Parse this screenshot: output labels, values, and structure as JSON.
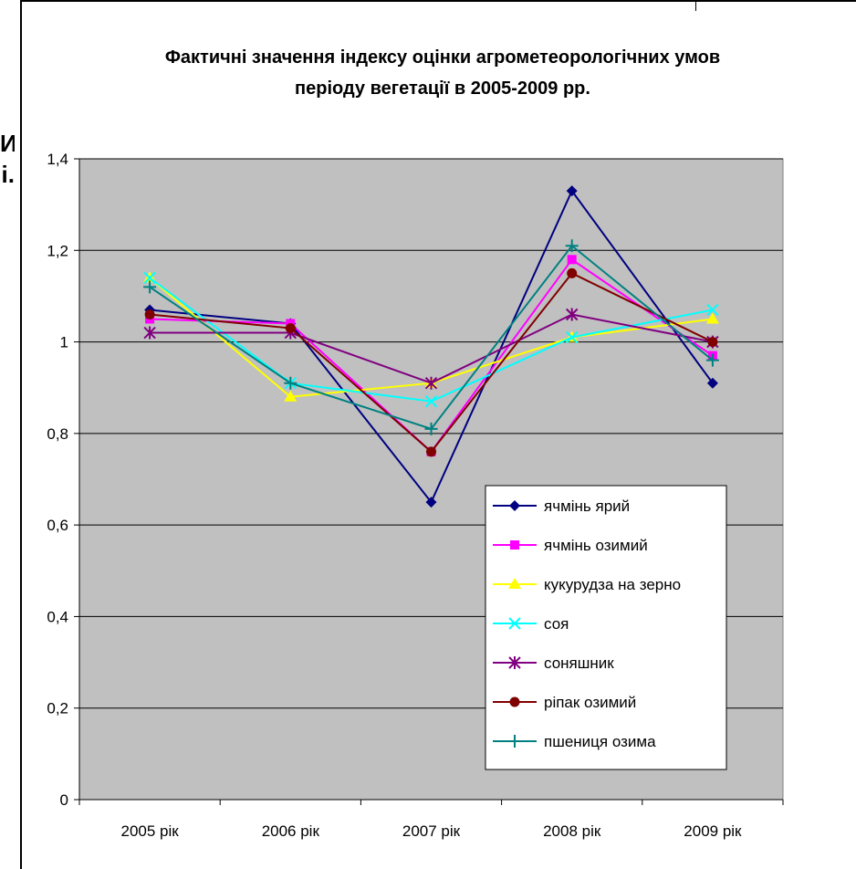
{
  "side_text": [
    "И",
    "і."
  ],
  "chart_data": {
    "type": "line",
    "title": "Фактичні значення індексу оцінки агрометеорологічних умов періоду вегетації в 2005-2009 рр.",
    "title_lines": [
      "Фактичні значення індексу оцінки агрометеорологічних умов",
      "періоду вегетації в 2005-2009 рр."
    ],
    "categories": [
      "2005 рік",
      "2006 рік",
      "2007 рік",
      "2008 рік",
      "2009 рік"
    ],
    "ylim": [
      0,
      1.4
    ],
    "yticks": [
      0,
      0.2,
      0.4,
      0.6,
      0.8,
      1,
      1.2,
      1.4
    ],
    "ytick_labels": [
      "0",
      "0,2",
      "0,4",
      "0,6",
      "0,8",
      "1",
      "1,2",
      "1,4"
    ],
    "grid": true,
    "plot_background": "#c0c0c0",
    "legend_position": "inside-bottom-right",
    "series": [
      {
        "name": "ячмінь ярий",
        "color": "#000080",
        "marker": "diamond",
        "values": [
          1.07,
          1.04,
          0.65,
          1.33,
          0.91
        ]
      },
      {
        "name": "ячмінь озимий",
        "color": "#ff00ff",
        "marker": "square",
        "values": [
          1.05,
          1.04,
          0.76,
          1.18,
          0.97
        ]
      },
      {
        "name": "кукурудза на зерно",
        "color": "#ffff00",
        "marker": "triangle",
        "values": [
          1.14,
          0.88,
          0.91,
          1.01,
          1.05
        ]
      },
      {
        "name": "соя",
        "color": "#00ffff",
        "marker": "x",
        "values": [
          1.14,
          0.91,
          0.87,
          1.01,
          1.07
        ]
      },
      {
        "name": "соняшник",
        "color": "#800080",
        "marker": "star",
        "values": [
          1.02,
          1.02,
          0.91,
          1.06,
          1.0
        ]
      },
      {
        "name": "ріпак озимий",
        "color": "#800000",
        "marker": "circle",
        "values": [
          1.06,
          1.03,
          0.76,
          1.15,
          1.0
        ]
      },
      {
        "name": "пшениця озима",
        "color": "#008080",
        "marker": "plus",
        "values": [
          1.12,
          0.91,
          0.81,
          1.21,
          0.96
        ]
      }
    ]
  }
}
